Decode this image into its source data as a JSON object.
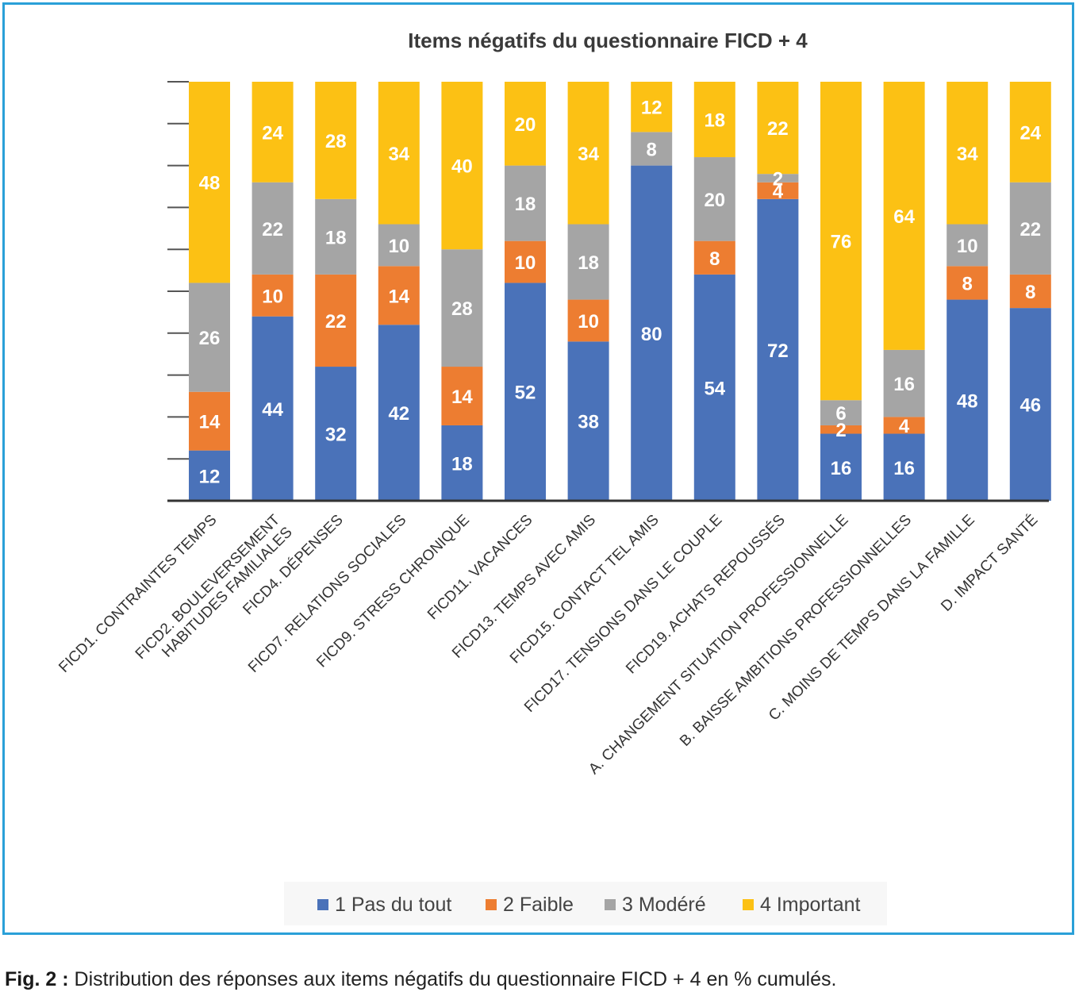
{
  "chart_data": {
    "type": "bar",
    "stacked": true,
    "title": "Items négatifs du questionnaire FICD + 4",
    "ylim": [
      0,
      100
    ],
    "grid": false,
    "legend_position": "bottom",
    "categories": [
      [
        "FICD1. CONTRAINTES TEMPS"
      ],
      [
        "FICD2. BOULEVERSEMENT",
        "HABITUDES FAMILIALES"
      ],
      [
        "FICD4. DÉPENSES"
      ],
      [
        "FICD7. RELATIONS SOCIALES"
      ],
      [
        "FICD9. STRESS CHRONIQUE"
      ],
      [
        "FICD11. VACANCES"
      ],
      [
        "FICD13. TEMPS AVEC AMIS"
      ],
      [
        "FICD15. CONTACT TEL AMIS"
      ],
      [
        "FICD17. TENSIONS DANS LE COUPLE"
      ],
      [
        "FICD19. ACHATS REPOUSSÉS"
      ],
      [
        "A. CHANGEMENT SITUATION PROFESSIONNELLE"
      ],
      [
        "B. BAISSE AMBITIONS PROFESSIONNELLES"
      ],
      [
        "C. MOINS DE TEMPS DANS LA FAMILLE"
      ],
      [
        "D. IMPACT SANTÉ"
      ]
    ],
    "series": [
      {
        "name": "1 Pas du tout",
        "color": "#4a72b9",
        "values": [
          12,
          44,
          32,
          42,
          18,
          52,
          38,
          80,
          54,
          72,
          16,
          16,
          48,
          46
        ]
      },
      {
        "name": "2 Faible",
        "color": "#ed7d31",
        "values": [
          14,
          10,
          22,
          14,
          14,
          10,
          10,
          0,
          8,
          4,
          2,
          4,
          8,
          8
        ]
      },
      {
        "name": "3 Modéré",
        "color": "#a5a5a5",
        "values": [
          26,
          22,
          18,
          10,
          28,
          18,
          18,
          8,
          20,
          2,
          6,
          16,
          10,
          22
        ]
      },
      {
        "name": "4 Important",
        "color": "#fcc114",
        "values": [
          48,
          24,
          28,
          34,
          40,
          20,
          34,
          12,
          18,
          22,
          76,
          64,
          34,
          24
        ]
      }
    ]
  },
  "caption": {
    "label": "Fig. 2 :",
    "text": " Distribution des réponses aux items négatifs du questionnaire FICD + 4 en % cumulés."
  }
}
